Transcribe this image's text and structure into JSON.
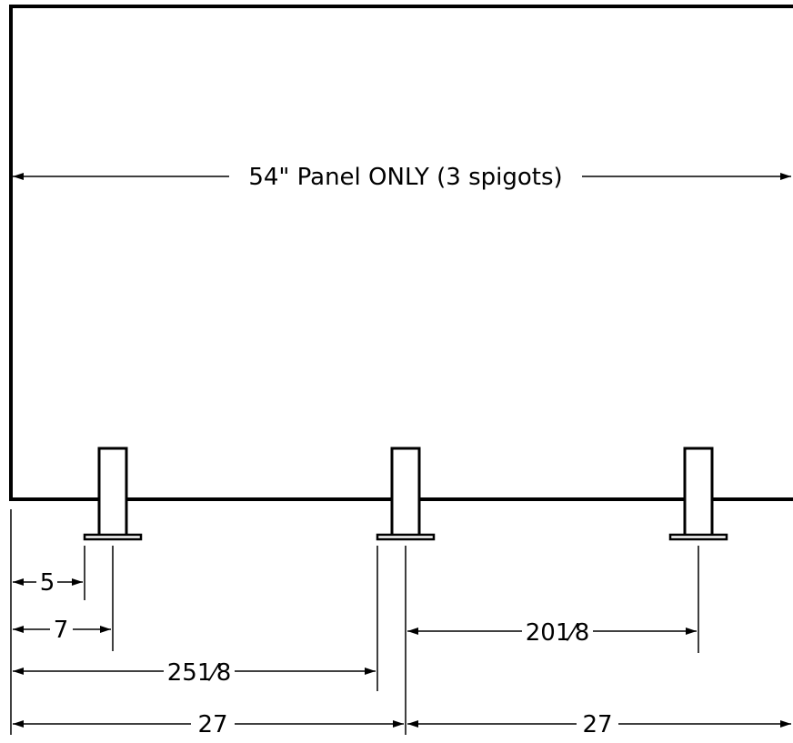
{
  "drawing": {
    "panel_label": "54\" Panel ONLY (3 spigots)",
    "dim_5": "5",
    "dim_7": "7",
    "dim_25_whole": "25",
    "dim_25_frac": "1⁄8",
    "dim_20_whole": "20",
    "dim_20_frac": "1⁄8",
    "dim_27_left": "27",
    "dim_27_right": "27"
  },
  "colors": {
    "line": "#000000",
    "background": "#ffffff"
  }
}
